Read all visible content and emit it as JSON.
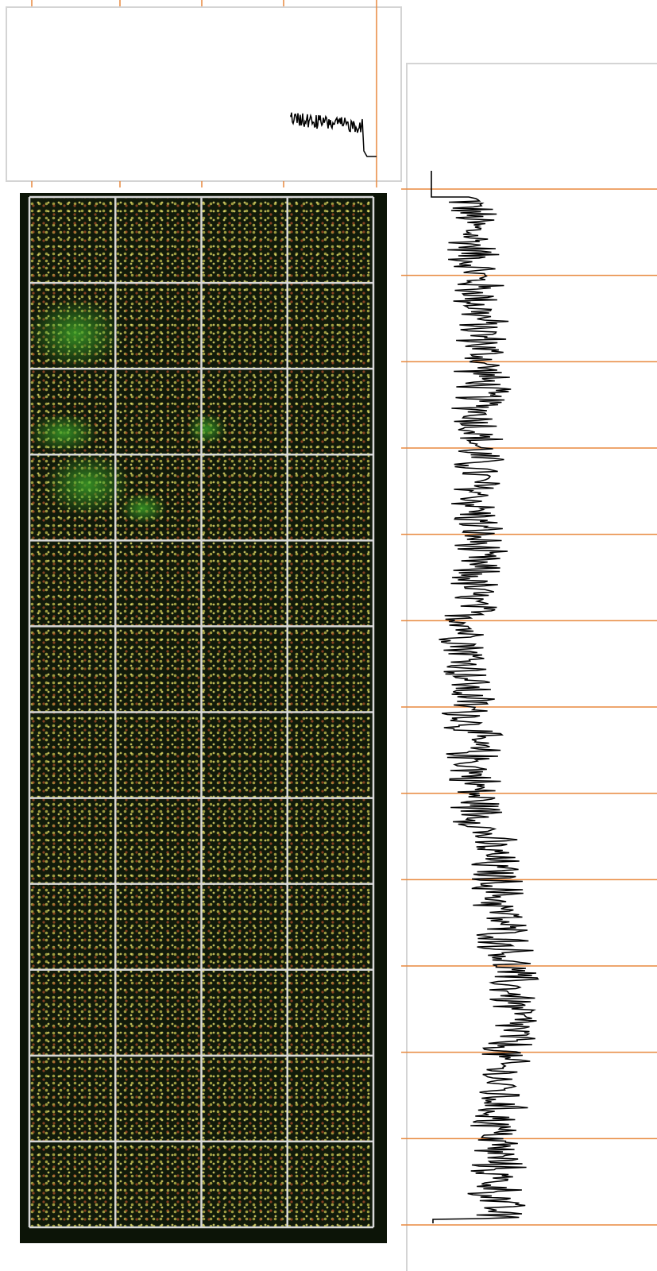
{
  "array_grid": {
    "rows": 12,
    "columns": 4
  }
}
